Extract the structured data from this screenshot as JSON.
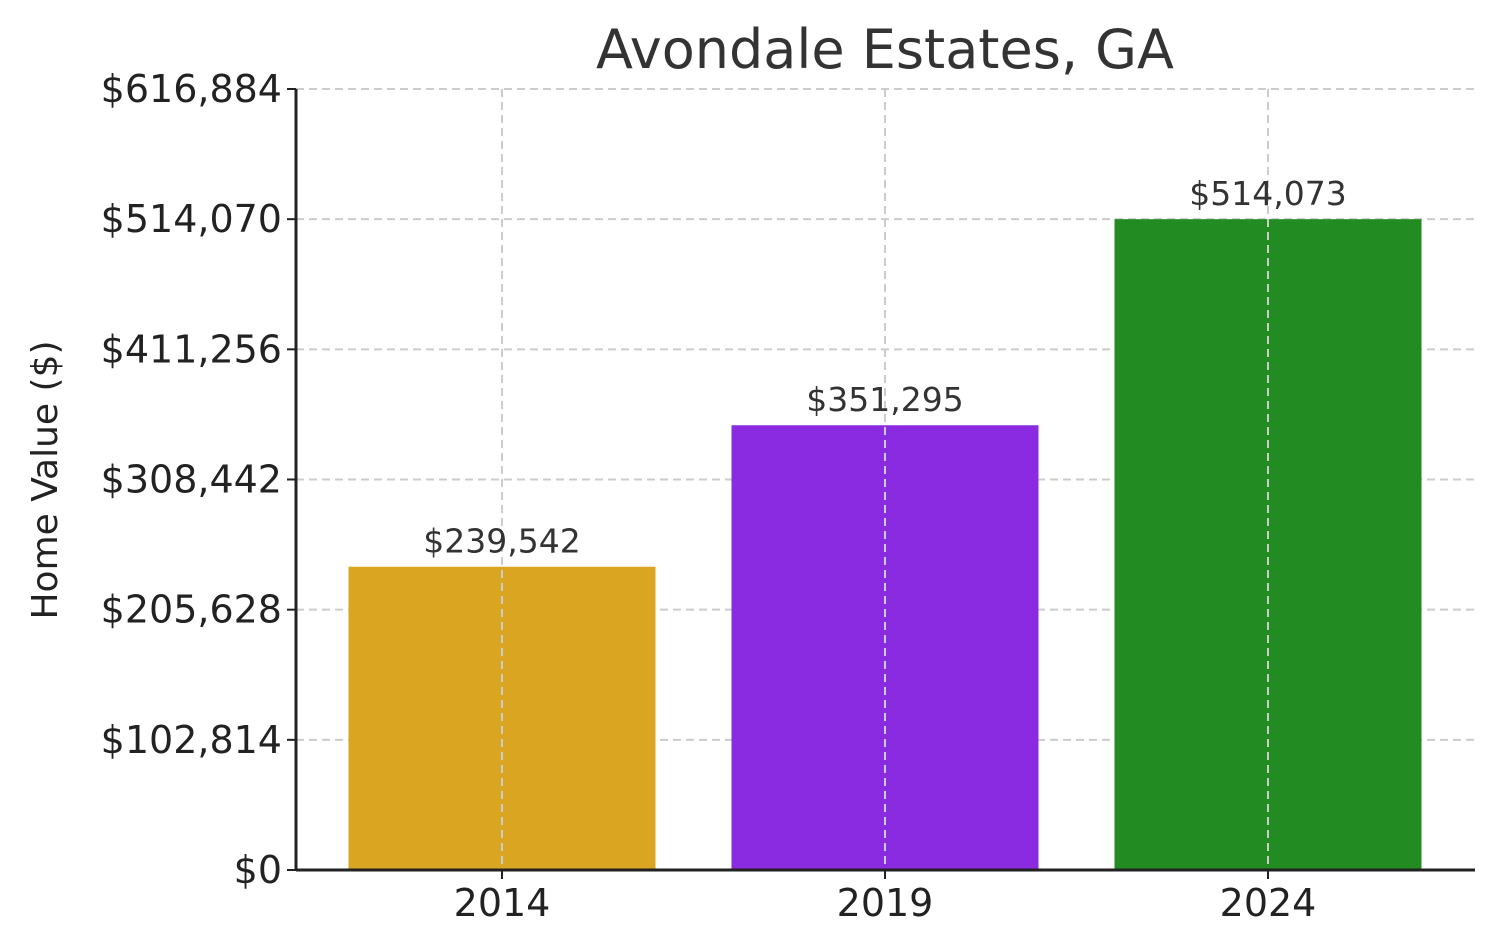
{
  "chart_data": {
    "type": "bar",
    "title": "Avondale Estates, GA",
    "xlabel": "",
    "ylabel": "Home Value ($)",
    "categories": [
      "2014",
      "2019",
      "2024"
    ],
    "values": [
      239542,
      351295,
      514073
    ],
    "value_labels": [
      "$239,542",
      "$351,295",
      "$514,073"
    ],
    "colors": [
      "#DAA520",
      "#8A2BE2",
      "#228B22"
    ],
    "ylim": [
      0,
      616884
    ],
    "yticks": [
      0,
      102814,
      205628,
      308442,
      411256,
      514070,
      616884
    ],
    "ytick_labels": [
      "$0",
      "$102,814",
      "$205,628",
      "$308,442",
      "$411,256",
      "$514,070",
      "$616,884"
    ],
    "grid": true,
    "legend": "none"
  }
}
